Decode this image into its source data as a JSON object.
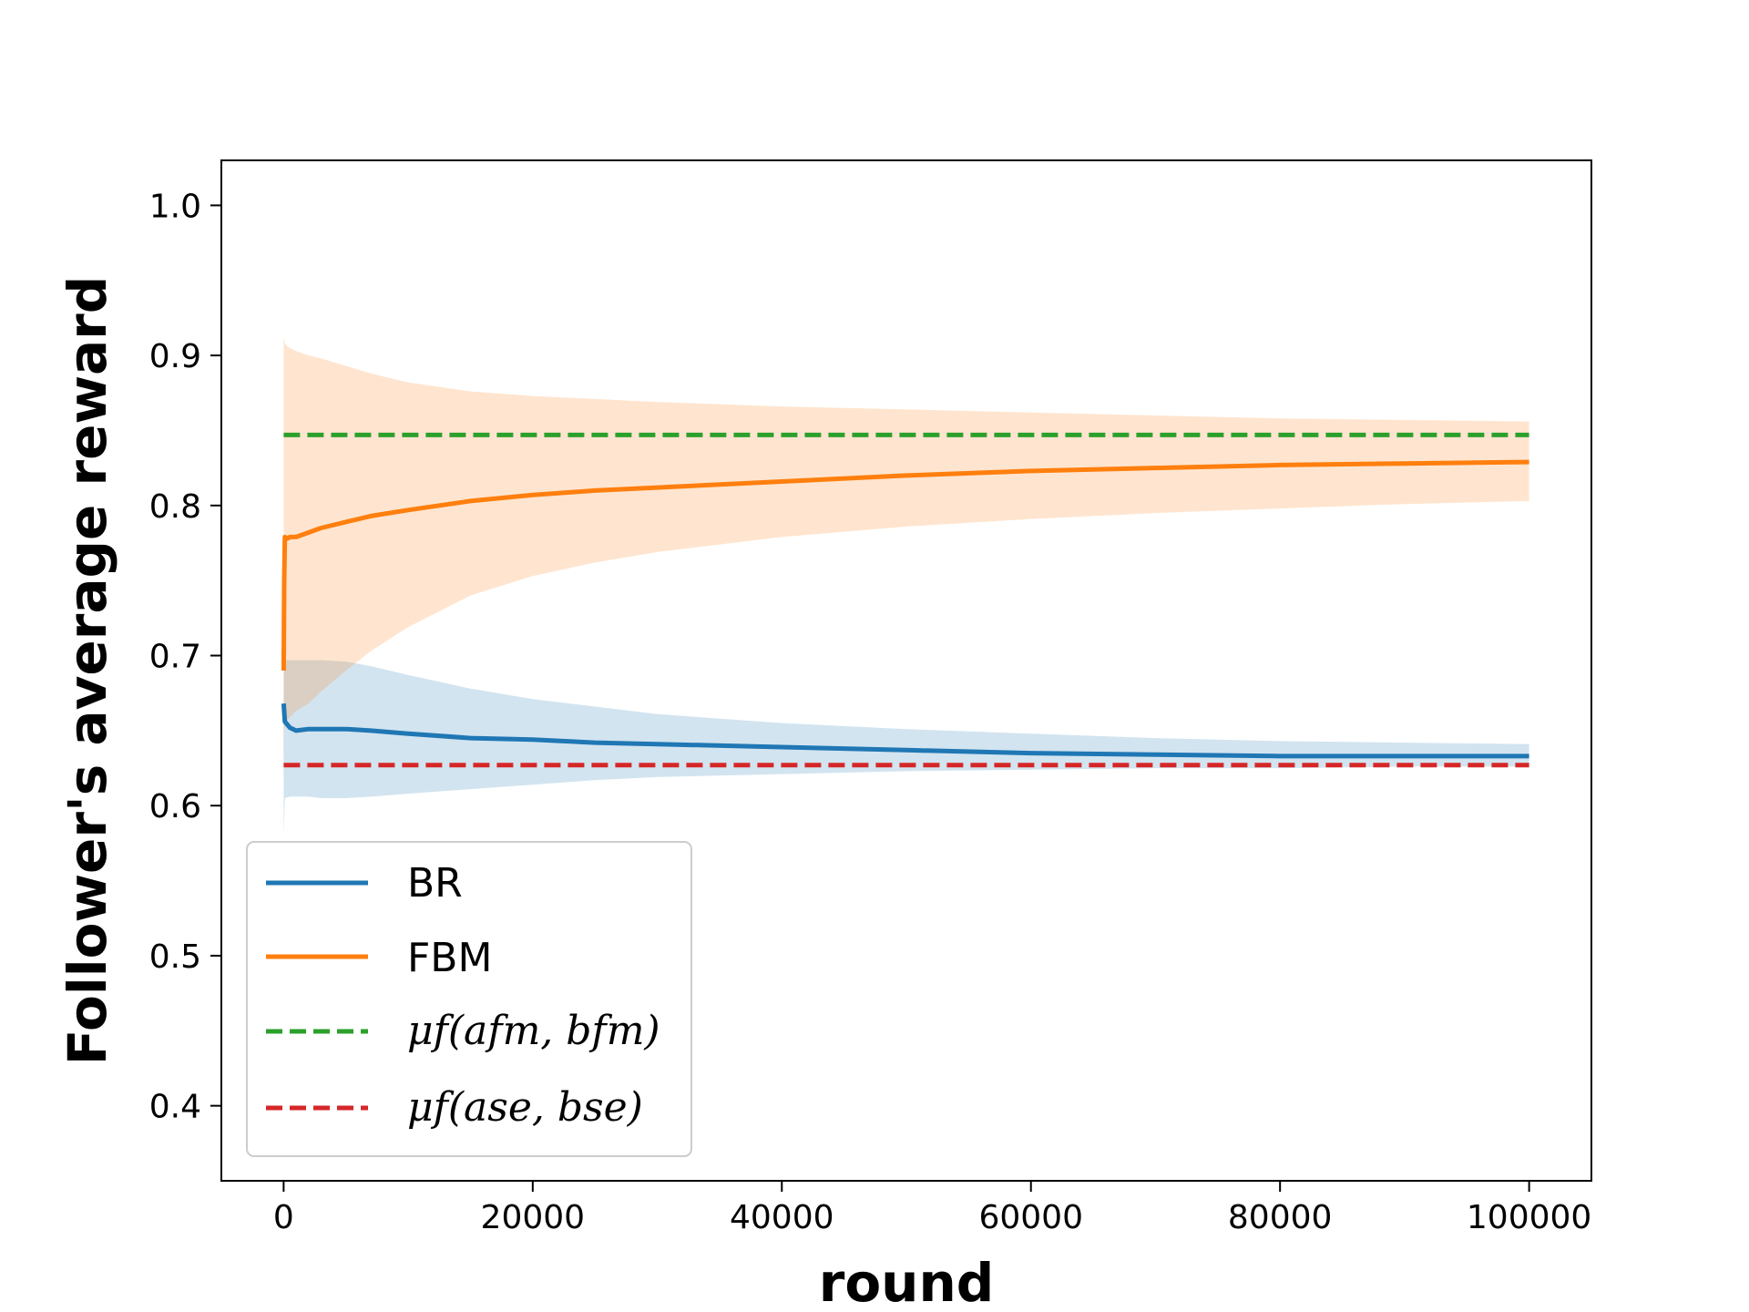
{
  "chart_data": {
    "type": "line",
    "title": "",
    "xlabel": "round",
    "ylabel": "Follower's average reward",
    "xlim": [
      -5000,
      105000
    ],
    "ylim": [
      0.35,
      1.03
    ],
    "xticks": [
      0,
      20000,
      40000,
      60000,
      80000,
      100000
    ],
    "xtick_labels": [
      "0",
      "20000",
      "40000",
      "60000",
      "80000",
      "100000"
    ],
    "yticks": [
      0.4,
      0.5,
      0.6,
      0.7,
      0.8,
      0.9,
      1.0
    ],
    "ytick_labels": [
      "0.4",
      "0.5",
      "0.6",
      "0.7",
      "0.8",
      "0.9",
      "1.0"
    ],
    "grid": false,
    "legend_position": "lower-left",
    "series": [
      {
        "name": "BR",
        "color": "#1f77b4",
        "style": "solid",
        "x": [
          0,
          100,
          500,
          1000,
          2000,
          3000,
          5000,
          7000,
          10000,
          15000,
          20000,
          25000,
          30000,
          40000,
          50000,
          60000,
          70000,
          80000,
          90000,
          100000
        ],
        "y": [
          0.668,
          0.656,
          0.652,
          0.65,
          0.651,
          0.651,
          0.651,
          0.65,
          0.648,
          0.645,
          0.644,
          0.642,
          0.641,
          0.639,
          0.637,
          0.635,
          0.634,
          0.633,
          0.633,
          0.633
        ],
        "band_upper": [
          0.697,
          0.697,
          0.697,
          0.697,
          0.697,
          0.697,
          0.696,
          0.693,
          0.687,
          0.678,
          0.671,
          0.666,
          0.661,
          0.655,
          0.651,
          0.648,
          0.645,
          0.643,
          0.642,
          0.641
        ],
        "band_lower": [
          0.58,
          0.605,
          0.606,
          0.606,
          0.606,
          0.605,
          0.605,
          0.606,
          0.608,
          0.611,
          0.614,
          0.617,
          0.619,
          0.621,
          0.623,
          0.624,
          0.625,
          0.625,
          0.626,
          0.626
        ]
      },
      {
        "name": "FBM",
        "color": "#ff7f0e",
        "style": "solid",
        "x": [
          0,
          50,
          100,
          300,
          500,
          1000,
          2000,
          3000,
          5000,
          7000,
          10000,
          15000,
          20000,
          25000,
          30000,
          40000,
          50000,
          60000,
          70000,
          80000,
          90000,
          100000
        ],
        "y": [
          0.69,
          0.75,
          0.779,
          0.778,
          0.779,
          0.779,
          0.782,
          0.785,
          0.789,
          0.793,
          0.797,
          0.803,
          0.807,
          0.81,
          0.812,
          0.816,
          0.82,
          0.823,
          0.825,
          0.827,
          0.828,
          0.829
        ],
        "band_upper": [
          0.912,
          0.91,
          0.908,
          0.906,
          0.905,
          0.903,
          0.9,
          0.898,
          0.893,
          0.888,
          0.882,
          0.876,
          0.873,
          0.871,
          0.869,
          0.866,
          0.864,
          0.862,
          0.86,
          0.858,
          0.857,
          0.856
        ],
        "band_lower": [
          0.615,
          0.65,
          0.655,
          0.657,
          0.659,
          0.663,
          0.668,
          0.676,
          0.69,
          0.703,
          0.719,
          0.74,
          0.753,
          0.762,
          0.769,
          0.779,
          0.786,
          0.791,
          0.795,
          0.798,
          0.801,
          0.803
        ]
      },
      {
        "name": "μf(afm, bfm)",
        "color": "#2ca02c",
        "style": "dashed",
        "x": [
          0,
          100000
        ],
        "y": [
          0.847,
          0.847
        ]
      },
      {
        "name": "μf(ase, bse)",
        "color": "#d62728",
        "style": "dashed",
        "x": [
          0,
          100000
        ],
        "y": [
          0.627,
          0.627
        ]
      }
    ]
  }
}
